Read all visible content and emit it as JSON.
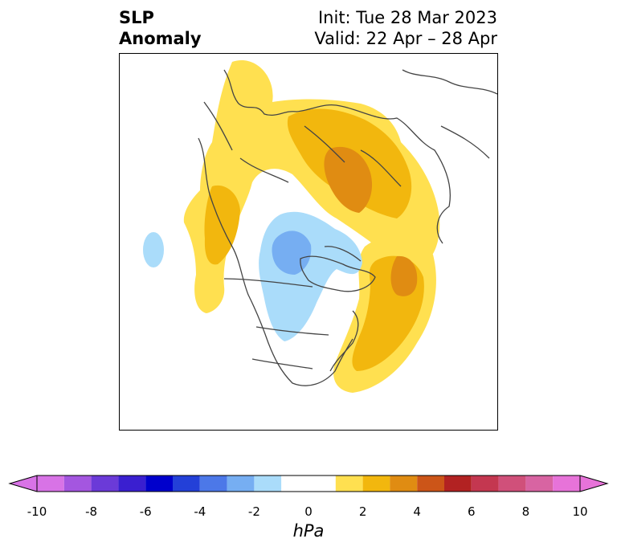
{
  "title": {
    "left_line1": "SLP",
    "left_line2": "Anomaly",
    "right_line1": "Init: Tue 28 Mar 2023",
    "right_line2": "Valid: 22 Apr – 28 Apr"
  },
  "colorbar": {
    "units": "hPa",
    "ticks": [
      "-10",
      "-8",
      "-6",
      "-4",
      "-2",
      "0",
      "2",
      "4",
      "6",
      "8",
      "10"
    ],
    "bins": [
      {
        "range": "<-10",
        "color": "#d873e6"
      },
      {
        "range": "-10 to -9",
        "color": "#d873e6"
      },
      {
        "range": "-9 to -8",
        "color": "#a456e0"
      },
      {
        "range": "-8 to -7",
        "color": "#6b3ad8"
      },
      {
        "range": "-7 to -6",
        "color": "#3a1fd0"
      },
      {
        "range": "-6 to -5",
        "color": "#0000cc"
      },
      {
        "range": "-5 to -4",
        "color": "#2340d8"
      },
      {
        "range": "-4 to -3",
        "color": "#4c78e8"
      },
      {
        "range": "-3 to -2",
        "color": "#76aef2"
      },
      {
        "range": "-2 to -1",
        "color": "#aadcfa"
      },
      {
        "range": "-1 to 1",
        "color": "#ffffff"
      },
      {
        "range": "1 to 2",
        "color": "#ffe050"
      },
      {
        "range": "2 to 3",
        "color": "#f2b70e"
      },
      {
        "range": "3 to 4",
        "color": "#e08c12"
      },
      {
        "range": "4 to 5",
        "color": "#cc5518"
      },
      {
        "range": "5 to 6",
        "color": "#b22222"
      },
      {
        "range": "6 to 7",
        "color": "#c43750"
      },
      {
        "range": "7 to 8",
        "color": "#d0507a"
      },
      {
        "range": "8 to 9",
        "color": "#d864a2"
      },
      {
        "range": "9 to 10",
        "color": "#e773d9"
      },
      {
        "range": ">10",
        "color": "#e773d9"
      }
    ]
  },
  "map": {
    "projection": "north-polar-stereographic",
    "features": [
      {
        "name": "positive anomaly over Eurasia",
        "level": "1 to 2 hPa",
        "color": "#ffe050"
      },
      {
        "name": "positive anomaly over Siberia",
        "level": "3 to 4 hPa",
        "color": "#e08c12"
      },
      {
        "name": "positive anomaly over North Atlantic",
        "level": "2 to 4 hPa",
        "color": "#f2b70e"
      },
      {
        "name": "positive anomaly over northeast Pacific",
        "level": "2 to 3 hPa",
        "color": "#f2b70e"
      },
      {
        "name": "negative anomaly over Canada / Arctic",
        "level": "-3 to -1 hPa",
        "color": "#76aef2"
      },
      {
        "name": "negative anomaly over central Pacific",
        "level": "-2 to -1 hPa",
        "color": "#aadcfa"
      }
    ]
  }
}
